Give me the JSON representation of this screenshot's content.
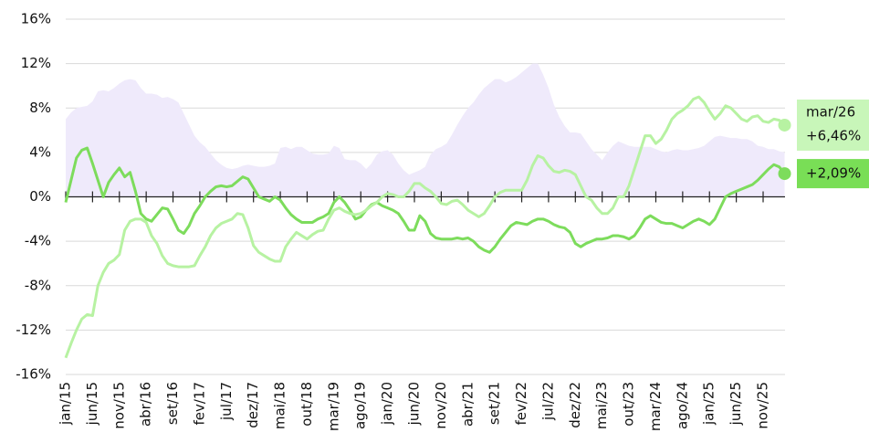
{
  "chart_data": {
    "type": "line",
    "categories": [
      "jan/15",
      null,
      null,
      null,
      null,
      "jun/15",
      null,
      null,
      null,
      null,
      "nov/15",
      null,
      null,
      null,
      null,
      "abr/16",
      null,
      null,
      null,
      null,
      "set/16",
      null,
      null,
      null,
      null,
      "fev/17",
      null,
      null,
      null,
      null,
      "jul/17",
      null,
      null,
      null,
      null,
      "dez/17",
      null,
      null,
      null,
      null,
      "mai/18",
      null,
      null,
      null,
      null,
      "out/18",
      null,
      null,
      null,
      null,
      "mar/19",
      null,
      null,
      null,
      null,
      "ago/19",
      null,
      null,
      null,
      null,
      "jan/20",
      null,
      null,
      null,
      null,
      "jun/20",
      null,
      null,
      null,
      null,
      "nov/20",
      null,
      null,
      null,
      null,
      "abr/21",
      null,
      null,
      null,
      null,
      "set/21",
      null,
      null,
      null,
      null,
      "fev/22",
      null,
      null,
      null,
      null,
      "jul/22",
      null,
      null,
      null,
      null,
      "dez/22",
      null,
      null,
      null,
      null,
      "mai/23",
      null,
      null,
      null,
      null,
      "out/23",
      null,
      null,
      null,
      null,
      "mar/24",
      null,
      null,
      null,
      null,
      "ago/24",
      null,
      null,
      null,
      null,
      "jan/25",
      null,
      null,
      null,
      null,
      "jun/25",
      null,
      null,
      null,
      null,
      "nov/25",
      null,
      null,
      null,
      null
    ],
    "ylim": [
      -16,
      16
    ],
    "yticks": [
      {
        "value": -16,
        "label": "-16%"
      },
      {
        "value": -12,
        "label": "-12%"
      },
      {
        "value": -8,
        "label": "-8%"
      },
      {
        "value": -4,
        "label": "-4%"
      },
      {
        "value": 0,
        "label": "0%"
      },
      {
        "value": 4,
        "label": "4%"
      },
      {
        "value": 8,
        "label": "8%"
      },
      {
        "value": 12,
        "label": "12%"
      },
      {
        "value": 16,
        "label": "16%"
      }
    ],
    "grid": true,
    "end_date": "mar/26",
    "series": [
      {
        "color": "#efeafb",
        "fill": true,
        "values": [
          7,
          7.6,
          8,
          8.1,
          8.2,
          8.6,
          9.5,
          9.6,
          9.5,
          9.8,
          10.2,
          10.5,
          10.6,
          10.5,
          9.8,
          9.3,
          9.3,
          9.2,
          8.9,
          9,
          8.8,
          8.5,
          7.5,
          6.5,
          5.5,
          4.9,
          4.5,
          3.9,
          3.3,
          2.9,
          2.6,
          2.5,
          2.6,
          2.8,
          2.9,
          2.8,
          2.7,
          2.7,
          2.8,
          3,
          4.4,
          4.5,
          4.3,
          4.5,
          4.5,
          4.2,
          3.9,
          3.8,
          3.8,
          3.9,
          4.6,
          4.4,
          3.4,
          3.3,
          3.3,
          3,
          2.5,
          3,
          3.8,
          4.1,
          4.2,
          3.8,
          3,
          2.4,
          2,
          2.2,
          2.4,
          2.7,
          3.8,
          4.3,
          4.5,
          4.8,
          5.6,
          6.5,
          7.3,
          8,
          8.5,
          9.2,
          9.8,
          10.2,
          10.6,
          10.6,
          10.3,
          10.5,
          10.8,
          11.2,
          11.6,
          12,
          12,
          11,
          9.8,
          8.3,
          7.2,
          6.4,
          5.8,
          5.8,
          5.7,
          5,
          4.3,
          3.8,
          3.3,
          4,
          4.6,
          5,
          4.8,
          4.6,
          4.5,
          4.5,
          4.5,
          4.5,
          4.3,
          4.1,
          4,
          4.2,
          4.3,
          4.2,
          4.2,
          4.3,
          4.4,
          4.6,
          5,
          5.4,
          5.5,
          5.4,
          5.3,
          5.3,
          5.2,
          5.2,
          5,
          4.6,
          4.5,
          4.3,
          4.3,
          4.1,
          4
        ]
      },
      {
        "color": "#7ddc5c",
        "end_label": "+2,09%",
        "values": [
          -0.5,
          1.5,
          3.5,
          4.2,
          4.4,
          3,
          1.5,
          0,
          1.3,
          2,
          2.6,
          1.8,
          2.2,
          0.5,
          -1.5,
          -2,
          -2.2,
          -1.6,
          -1,
          -1.1,
          -2,
          -3,
          -3.3,
          -2.6,
          -1.5,
          -0.8,
          0,
          0.5,
          0.9,
          1,
          0.9,
          1,
          1.4,
          1.8,
          1.6,
          0.8,
          0,
          -0.2,
          -0.4,
          0,
          -0.3,
          -1,
          -1.6,
          -2,
          -2.3,
          -2.3,
          -2.3,
          -2,
          -1.8,
          -1.5,
          -0.5,
          0,
          -0.5,
          -1.2,
          -2,
          -1.8,
          -1.2,
          -0.7,
          -0.5,
          -0.8,
          -1,
          -1.2,
          -1.5,
          -2.2,
          -3,
          -3,
          -1.7,
          -2.2,
          -3.3,
          -3.7,
          -3.8,
          -3.8,
          -3.8,
          -3.7,
          -3.8,
          -3.7,
          -4,
          -4.5,
          -4.8,
          -5,
          -4.5,
          -3.8,
          -3.2,
          -2.6,
          -2.3,
          -2.4,
          -2.5,
          -2.2,
          -2,
          -2,
          -2.2,
          -2.5,
          -2.7,
          -2.8,
          -3.2,
          -4.2,
          -4.5,
          -4.2,
          -4,
          -3.8,
          -3.8,
          -3.7,
          -3.5,
          -3.5,
          -3.6,
          -3.8,
          -3.5,
          -2.8,
          -2,
          -1.7,
          -2,
          -2.3,
          -2.4,
          -2.4,
          -2.6,
          -2.8,
          -2.5,
          -2.2,
          -2,
          -2.2,
          -2.5,
          -2,
          -1,
          0,
          0.3,
          0.5,
          0.7,
          0.9,
          1.1,
          1.5,
          2,
          2.5,
          2.9,
          2.7,
          2.09
        ]
      },
      {
        "color": "#b7f2a2",
        "end_label": "+6,46%",
        "values": [
          -14.5,
          -13.2,
          -12,
          -11,
          -10.6,
          -10.7,
          -8,
          -6.8,
          -6,
          -5.7,
          -5.2,
          -3,
          -2.2,
          -2,
          -2,
          -2.3,
          -3.5,
          -4.2,
          -5.3,
          -6,
          -6.2,
          -6.3,
          -6.3,
          -6.3,
          -6.2,
          -5.3,
          -4.5,
          -3.5,
          -2.8,
          -2.4,
          -2.2,
          -2,
          -1.5,
          -1.6,
          -2.8,
          -4.4,
          -5,
          -5.3,
          -5.6,
          -5.8,
          -5.8,
          -4.5,
          -3.8,
          -3.2,
          -3.5,
          -3.8,
          -3.4,
          -3.1,
          -3,
          -2,
          -1.2,
          -1,
          -1.3,
          -1.5,
          -1.6,
          -1.5,
          -1.2,
          -0.8,
          -0.5,
          0,
          0.3,
          0.2,
          0,
          0,
          0.5,
          1.2,
          1.2,
          0.8,
          0.5,
          0,
          -0.6,
          -0.7,
          -0.4,
          -0.3,
          -0.7,
          -1.2,
          -1.5,
          -1.8,
          -1.5,
          -0.8,
          0,
          0.4,
          0.6,
          0.6,
          0.6,
          0.6,
          1.5,
          2.8,
          3.7,
          3.5,
          2.8,
          2.3,
          2.2,
          2.4,
          2.3,
          2,
          1,
          0,
          -0.3,
          -1,
          -1.5,
          -1.5,
          -1,
          0,
          0,
          1,
          2.5,
          4,
          5.5,
          5.5,
          4.8,
          5.2,
          6,
          7,
          7.5,
          7.8,
          8.2,
          8.8,
          9,
          8.5,
          7.7,
          7,
          7.5,
          8.2,
          8,
          7.5,
          7,
          6.8,
          7.2,
          7.3,
          6.8,
          6.7,
          7,
          6.9,
          6.46
        ]
      }
    ]
  }
}
